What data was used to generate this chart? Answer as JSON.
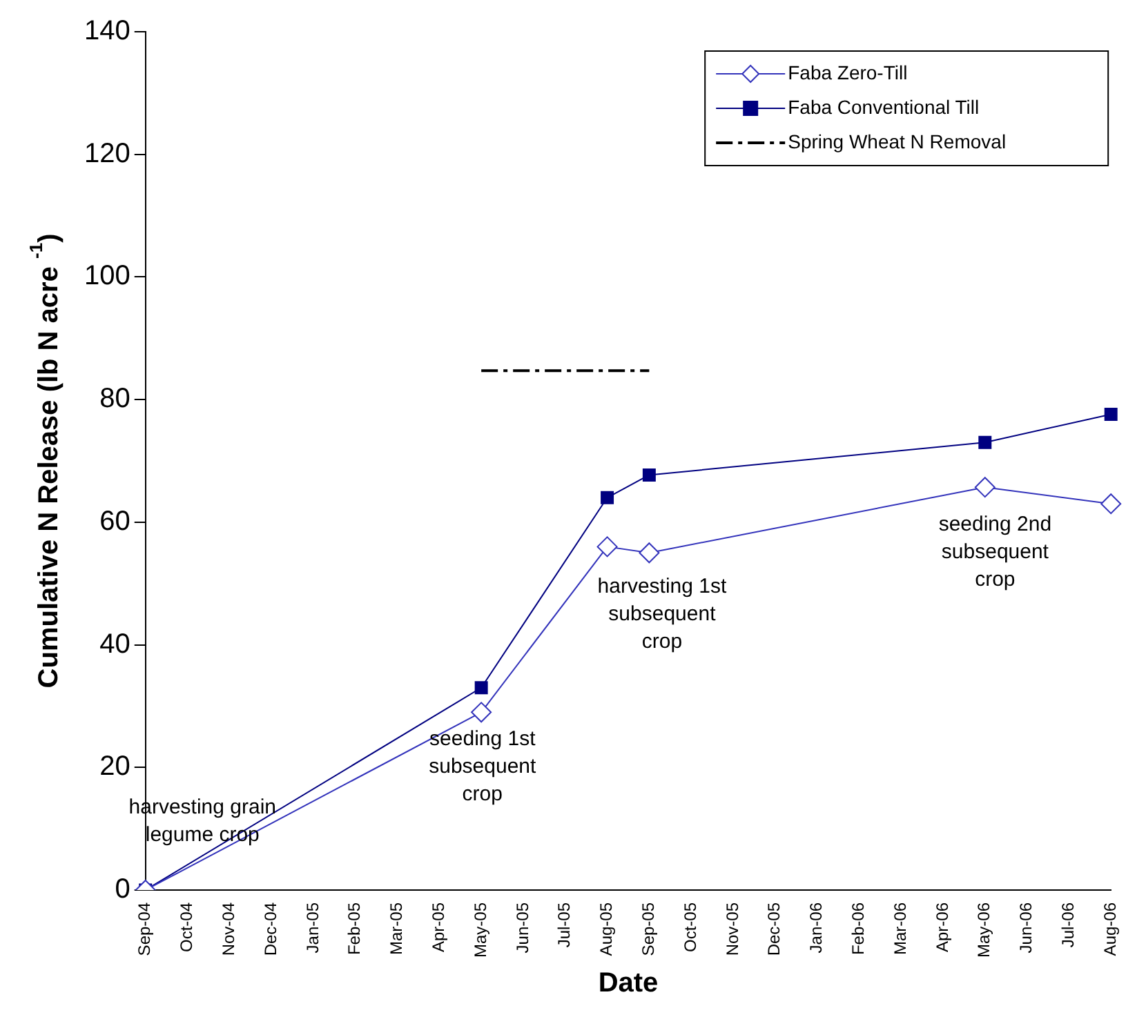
{
  "chart_data": {
    "type": "line",
    "xlabel": "Date",
    "ylabel": "Cumulative N Release (lb N acre $^{-1}$)",
    "categories": [
      "Sep-04",
      "Oct-04",
      "Nov-04",
      "Dec-04",
      "Jan-05",
      "Feb-05",
      "Mar-05",
      "Apr-05",
      "May-05",
      "Jun-05",
      "Jul-05",
      "Aug-05",
      "Sep-05",
      "Oct-05",
      "Nov-05",
      "Dec-05",
      "Jan-06",
      "Feb-06",
      "Mar-06",
      "Apr-06",
      "May-06",
      "Jun-06",
      "Jul-06",
      "Aug-06"
    ],
    "series": [
      {
        "name": "Faba Zero-Till",
        "color": "#3333bb",
        "marker": "diamond",
        "values": [
          0,
          null,
          null,
          null,
          null,
          null,
          null,
          null,
          29,
          null,
          null,
          56,
          55,
          null,
          null,
          null,
          null,
          null,
          null,
          null,
          65.7,
          null,
          null,
          63
        ]
      },
      {
        "name": "Faba Conventional Till",
        "color": "#000080",
        "marker": "square",
        "values": [
          0,
          null,
          null,
          null,
          null,
          null,
          null,
          null,
          33,
          null,
          null,
          64,
          67.7,
          null,
          null,
          null,
          null,
          null,
          null,
          null,
          73,
          null,
          null,
          77.6
        ]
      },
      {
        "name": "Spring Wheat N Removal",
        "color": "#000000",
        "marker": "none",
        "line_style": "dashed",
        "values": [
          null,
          null,
          null,
          null,
          null,
          null,
          null,
          null,
          84.7,
          84.7,
          84.7,
          84.7,
          84.7,
          null,
          null,
          null,
          null,
          null,
          null,
          null,
          null,
          null,
          null,
          null
        ]
      }
    ],
    "ylim": [
      0,
      140
    ],
    "yticks": [
      0,
      20,
      40,
      60,
      80,
      100,
      120,
      140
    ],
    "grid": false,
    "legend": "top right",
    "annotations": [
      "harvesting grain\nlegume crop",
      "seeding 1st\nsubsequent\ncrop",
      "harvesting 1st\nsubsequent\ncrop",
      "seeding 2nd\nsubsequent\ncrop"
    ]
  }
}
